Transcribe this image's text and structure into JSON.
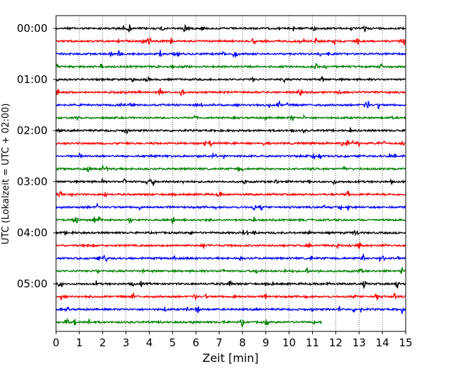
{
  "chart_data": {
    "type": "line",
    "subtype": "helicorder",
    "xlabel": "Zeit  [min]",
    "ylabel": "UTC (Lokalzeit = UTC + 02:00)",
    "xlim": [
      0,
      15
    ],
    "x_ticks": [
      "0",
      "1",
      "2",
      "3",
      "4",
      "5",
      "6",
      "7",
      "8",
      "9",
      "10",
      "11",
      "12",
      "13",
      "14",
      "15"
    ],
    "y_tick_labels": [
      "00:00",
      "01:00",
      "02:00",
      "03:00",
      "04:00",
      "05:00"
    ],
    "grid": "vertical dotted lines at each minute",
    "trace_colors": [
      "#000000",
      "#ff0000",
      "#0000ff",
      "#008000"
    ],
    "traces": [
      {
        "start": "00:00",
        "color": "#000000",
        "end_min": 15
      },
      {
        "start": "00:15",
        "color": "#ff0000",
        "end_min": 15
      },
      {
        "start": "00:30",
        "color": "#0000ff",
        "end_min": 15
      },
      {
        "start": "00:45",
        "color": "#008000",
        "end_min": 15
      },
      {
        "start": "01:00",
        "color": "#000000",
        "end_min": 15
      },
      {
        "start": "01:15",
        "color": "#ff0000",
        "end_min": 15
      },
      {
        "start": "01:30",
        "color": "#0000ff",
        "end_min": 15
      },
      {
        "start": "01:45",
        "color": "#008000",
        "end_min": 15
      },
      {
        "start": "02:00",
        "color": "#000000",
        "end_min": 15
      },
      {
        "start": "02:15",
        "color": "#ff0000",
        "end_min": 15
      },
      {
        "start": "02:30",
        "color": "#0000ff",
        "end_min": 15
      },
      {
        "start": "02:45",
        "color": "#008000",
        "end_min": 15
      },
      {
        "start": "03:00",
        "color": "#000000",
        "end_min": 15
      },
      {
        "start": "03:15",
        "color": "#ff0000",
        "end_min": 15
      },
      {
        "start": "03:30",
        "color": "#0000ff",
        "end_min": 15
      },
      {
        "start": "03:45",
        "color": "#008000",
        "end_min": 15
      },
      {
        "start": "04:00",
        "color": "#000000",
        "end_min": 15
      },
      {
        "start": "04:15",
        "color": "#ff0000",
        "end_min": 15
      },
      {
        "start": "04:30",
        "color": "#0000ff",
        "end_min": 15
      },
      {
        "start": "04:45",
        "color": "#008000",
        "end_min": 15
      },
      {
        "start": "05:00",
        "color": "#000000",
        "end_min": 15
      },
      {
        "start": "05:15",
        "color": "#ff0000",
        "end_min": 15
      },
      {
        "start": "05:30",
        "color": "#0000ff",
        "end_min": 15
      },
      {
        "start": "05:45",
        "color": "#008000",
        "end_min": 11.4
      }
    ]
  }
}
